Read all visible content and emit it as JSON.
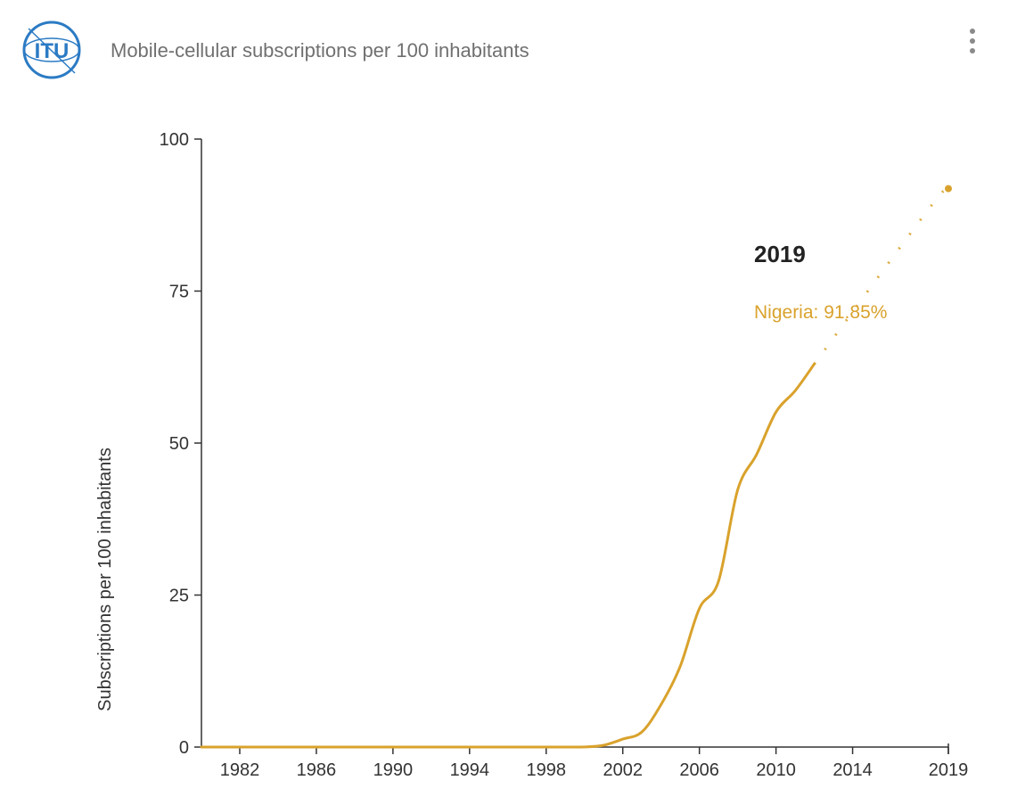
{
  "header": {
    "logo_text": "ITU",
    "title": "Mobile-cellular subscriptions per 100 inhabitants",
    "menu_icon": "more-vertical-icon"
  },
  "colors": {
    "series": "#d9a22c",
    "axis": "#333333",
    "title": "#707070"
  },
  "tooltip": {
    "year": "2019",
    "text": "Nigeria: 91.85%"
  },
  "chart_data": {
    "type": "line",
    "title": "Mobile-cellular subscriptions per 100 inhabitants",
    "xlabel": "",
    "ylabel": "Subscriptions per 100 inhabitants",
    "xlim": [
      1980,
      2019
    ],
    "ylim": [
      0,
      100
    ],
    "x_ticks": [
      "1982",
      "1986",
      "1990",
      "1994",
      "1998",
      "2002",
      "2006",
      "2010",
      "2014",
      "2019"
    ],
    "y_ticks": [
      0,
      25,
      50,
      75,
      100
    ],
    "grid": false,
    "series": [
      {
        "name": "Nigeria",
        "x": [
          1980,
          1985,
          1990,
          1995,
          1998,
          2000,
          2001,
          2002,
          2003,
          2004,
          2005,
          2006,
          2007,
          2008,
          2009,
          2010,
          2011,
          2012,
          2018,
          2019
        ],
        "y": [
          0,
          0,
          0,
          0,
          0,
          0.02,
          0.3,
          1.3,
          2.5,
          7.0,
          13.3,
          22.8,
          27.3,
          42.3,
          48.2,
          55.1,
          58.6,
          63.0,
          88.6,
          91.85
        ]
      }
    ]
  }
}
